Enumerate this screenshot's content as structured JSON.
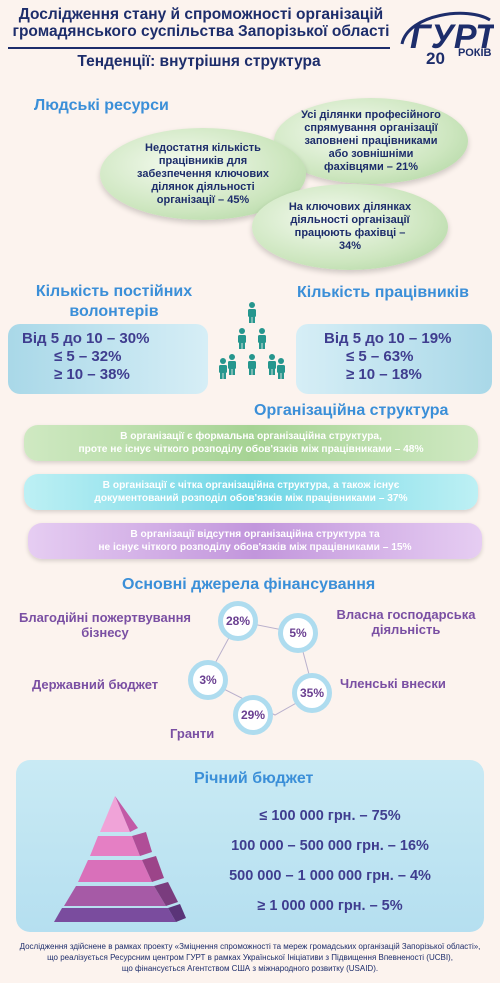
{
  "header": {
    "title_line1": "Дослідження стану й спроможності організацій",
    "title_line2": "громадянського суспільства Запорізької області",
    "subtitle": "Тенденції: внутрішня структура",
    "logo_text": "ГУРТ",
    "logo_number": "20",
    "logo_years": "РОКІВ"
  },
  "human_resources": {
    "heading": "Людські ресурси",
    "ellipses": [
      "Усі ділянки професійного спрямування організації заповнені працівниками або зовнішніми фахівцями – 21%",
      "Недостатня кількість працівників для забезпечення ключових ділянок діяльності організації – 45%",
      "На ключових ділянках діяльності організації працюють фахівці – 34%"
    ]
  },
  "volunteers": {
    "heading": "Кількість постійних волонтерів",
    "rows": [
      "Від 5 до 10 – 30%",
      "≤ 5 – 32%",
      "≥ 10 – 38%"
    ]
  },
  "employees": {
    "heading": "Кількість працівників",
    "rows": [
      "Від 5 до 10 – 19%",
      "≤ 5 – 63%",
      "≥ 10 – 18%"
    ]
  },
  "org_structure": {
    "heading": "Організаційна структура",
    "items": [
      {
        "line1": "В організації є формальна організаційна структура,",
        "line2": "проте не існує чіткого розподілу обов'язків між працівниками – 48%"
      },
      {
        "line1": "В організації є чітка організаційна структура, а також існує",
        "line2": "документований розподіл обов'язків між працівниками – 37%"
      },
      {
        "line1": "В організації відсутня організаційна структура та",
        "line2": "не існує чіткого розподілу обов'язків між працівниками – 15%"
      }
    ]
  },
  "funding": {
    "heading": "Основні джерела фінансування",
    "sources": [
      {
        "label": "Благодійні пожертвування бізнесу",
        "value": "28%"
      },
      {
        "label": "Власна господарська діяльність",
        "value": "5%"
      },
      {
        "label": "Членські внески",
        "value": "35%"
      },
      {
        "label": "Гранти",
        "value": "29%"
      },
      {
        "label": "Державний бюджет",
        "value": "3%"
      }
    ]
  },
  "budget": {
    "heading": "Річний бюджет",
    "rows": [
      "≤ 100 000 грн. – 75%",
      "100 000 – 500 000 грн. – 16%",
      "500 000 – 1 000 000 грн. – 4%",
      "≥ 1 000 000 грн. – 5%"
    ]
  },
  "footer": {
    "line1": "Дослідження здійснене в рамках проекту «Зміцнення спроможності та мереж громадських організацій Запорізької області»,",
    "line2": "що реалізується Ресурсним центром ГУРТ в рамках Української Ініціативи з Підвищення Впевненості (UCBI),",
    "line3": "що фінансується Агентством США з міжнародного розвитку (USAID)."
  },
  "colors": {
    "navy": "#1d2d6b",
    "heading_blue": "#3b8fd8",
    "green": "#a8d29a",
    "cyan": "#7fdce8",
    "purple": "#c9a0e0",
    "pyramid_pink": "#e67fc4",
    "pyramid_purple": "#7a4c9e"
  }
}
